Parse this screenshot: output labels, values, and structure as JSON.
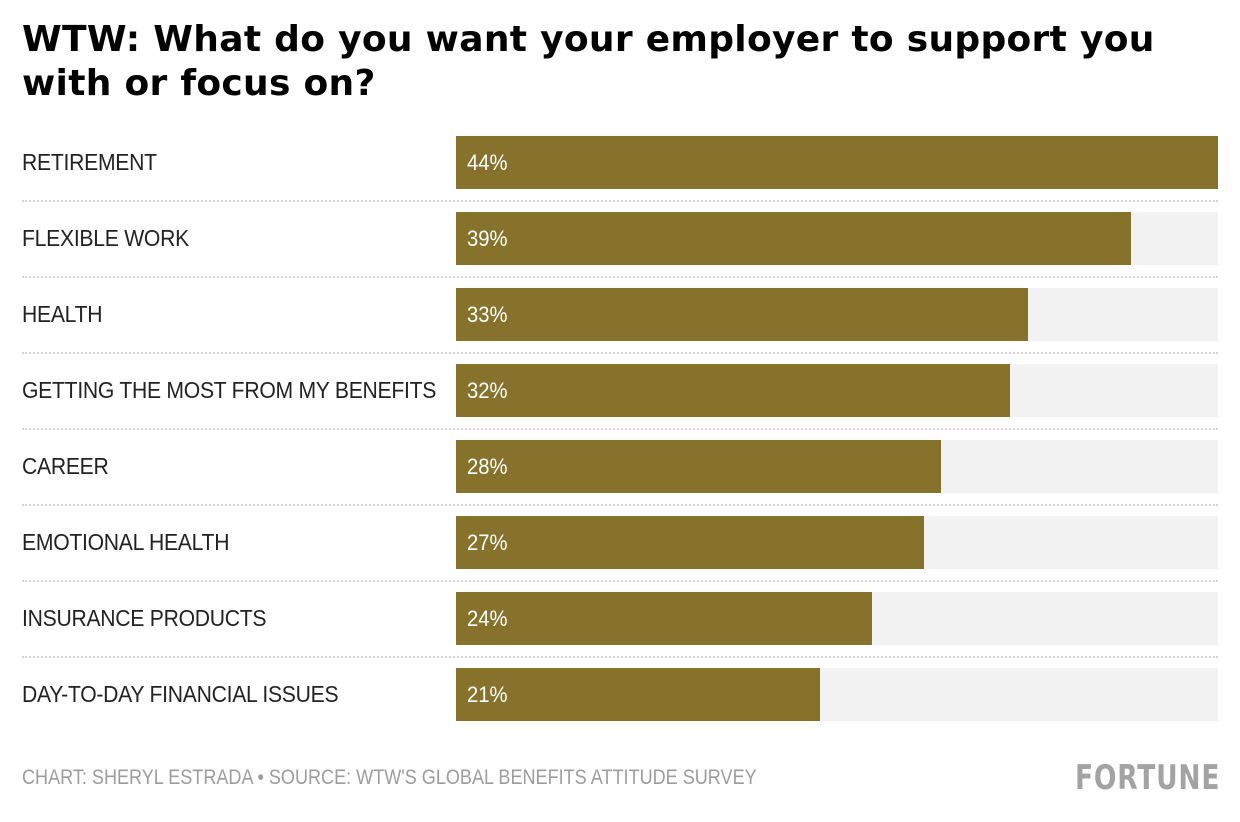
{
  "chart_data": {
    "type": "bar",
    "orientation": "horizontal",
    "title": "WTW: What do you want your employer to support you with or focus on?",
    "categories": [
      "RETIREMENT",
      "FLEXIBLE WORK",
      "HEALTH",
      "GETTING THE MOST FROM MY BENEFITS",
      "CAREER",
      "EMOTIONAL HEALTH",
      "INSURANCE PRODUCTS",
      "DAY-TO-DAY FINANCIAL ISSUES"
    ],
    "values": [
      44,
      39,
      33,
      32,
      28,
      27,
      24,
      21
    ],
    "value_labels": [
      "44%",
      "39%",
      "33%",
      "32%",
      "28%",
      "27%",
      "24%",
      "21%"
    ],
    "xlabel": "",
    "ylabel": "",
    "xlim": [
      0,
      44
    ],
    "grid": false,
    "legend": "none",
    "colors": {
      "bar": "#86722a",
      "track": "#f2f2f2"
    }
  },
  "footer": {
    "credit": "CHART: SHERYL ESTRADA • SOURCE: WTW'S GLOBAL BENEFITS ATTITUDE SURVEY",
    "logo": "FORTUNE"
  }
}
